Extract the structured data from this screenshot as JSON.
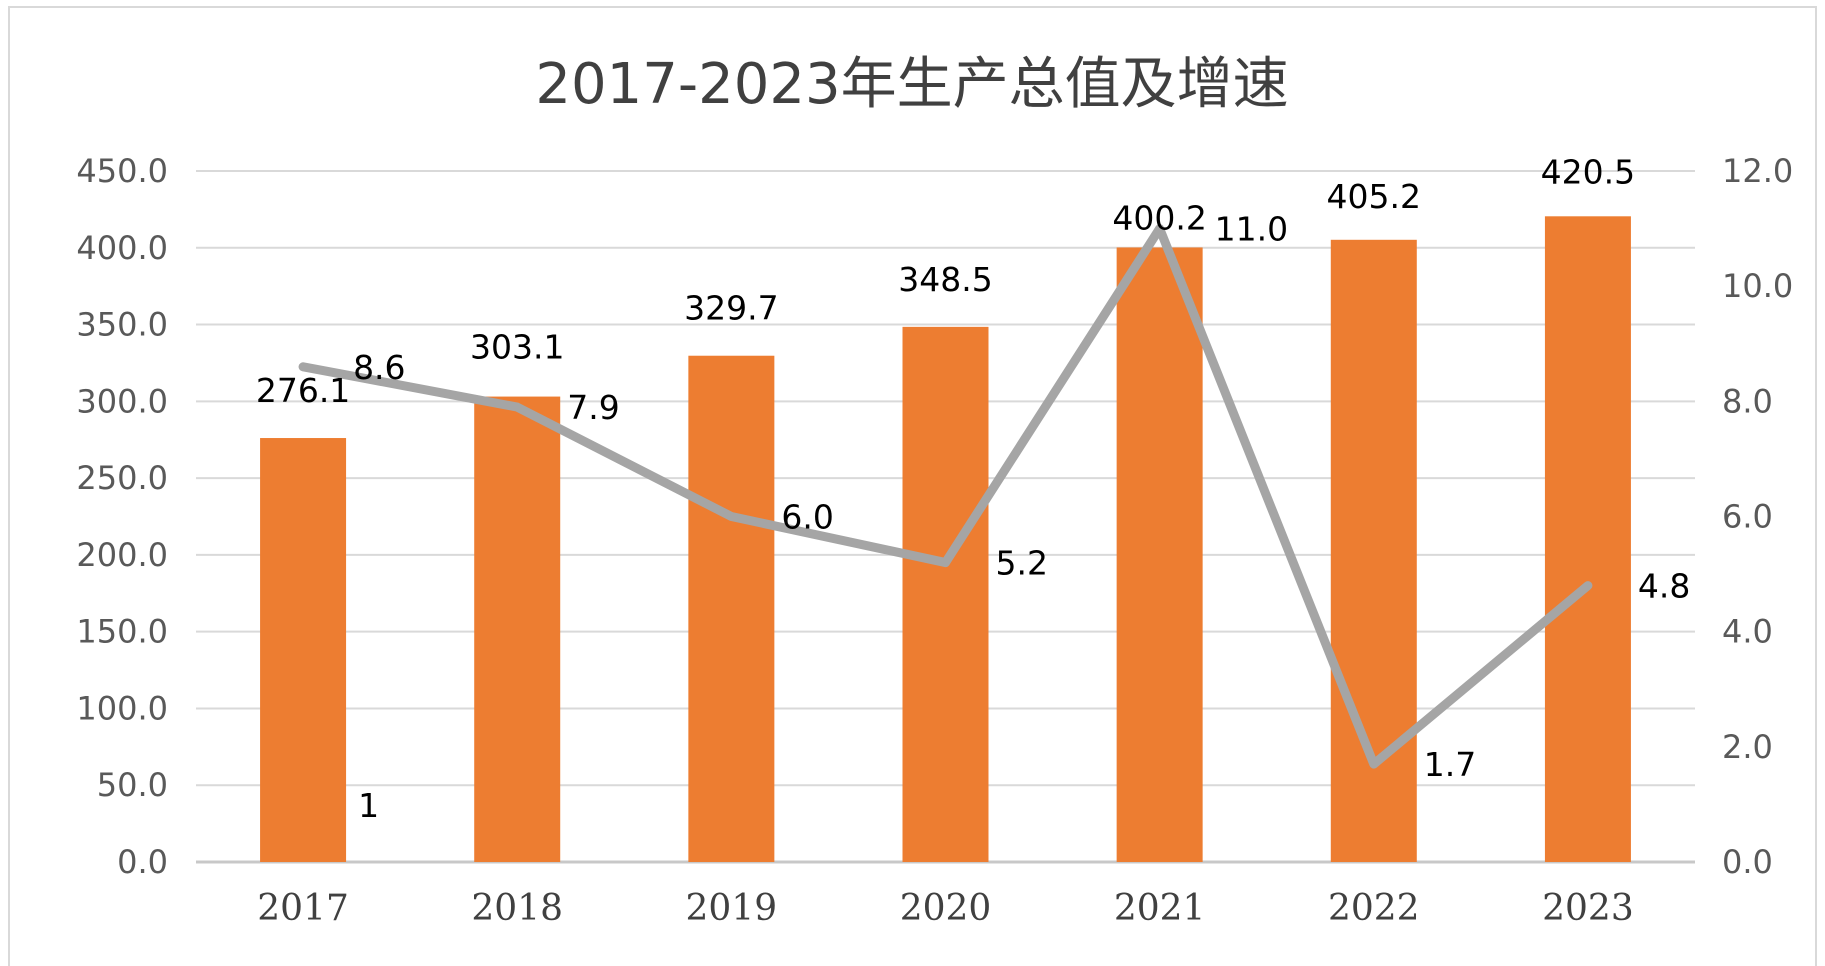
{
  "chart_data": {
    "type": "bar",
    "title": "2017-2023年生产总值及增速",
    "categories": [
      "2017",
      "2018",
      "2019",
      "2020",
      "2021",
      "2022",
      "2023"
    ],
    "series": [
      {
        "type": "bar",
        "axis": "left",
        "values": [
          276.1,
          303.1,
          329.7,
          348.5,
          400.2,
          405.2,
          420.5
        ],
        "color": "#ED7D31"
      },
      {
        "type": "line",
        "axis": "right",
        "values": [
          8.6,
          7.9,
          6.0,
          5.2,
          11.0,
          1.7,
          4.8
        ],
        "color": "#A5A5A5"
      }
    ],
    "bar_labels": [
      "276.1",
      "303.1",
      "329.7",
      "348.5",
      "400.2",
      "405.2",
      "420.5"
    ],
    "line_labels": [
      "8.6",
      "7.9",
      "6.0",
      "5.2",
      "11.0",
      "1.7",
      "4.8"
    ],
    "extra_label": "1",
    "y_left": {
      "min": 0,
      "max": 450,
      "ticks": [
        "0.0",
        "50.0",
        "100.0",
        "150.0",
        "200.0",
        "250.0",
        "300.0",
        "350.0",
        "400.0",
        "450.0"
      ]
    },
    "y_right": {
      "min": 0,
      "max": 12,
      "ticks": [
        "0.0",
        "2.0",
        "4.0",
        "6.0",
        "8.0",
        "10.0",
        "12.0"
      ]
    },
    "grid": true,
    "legend": "none"
  }
}
